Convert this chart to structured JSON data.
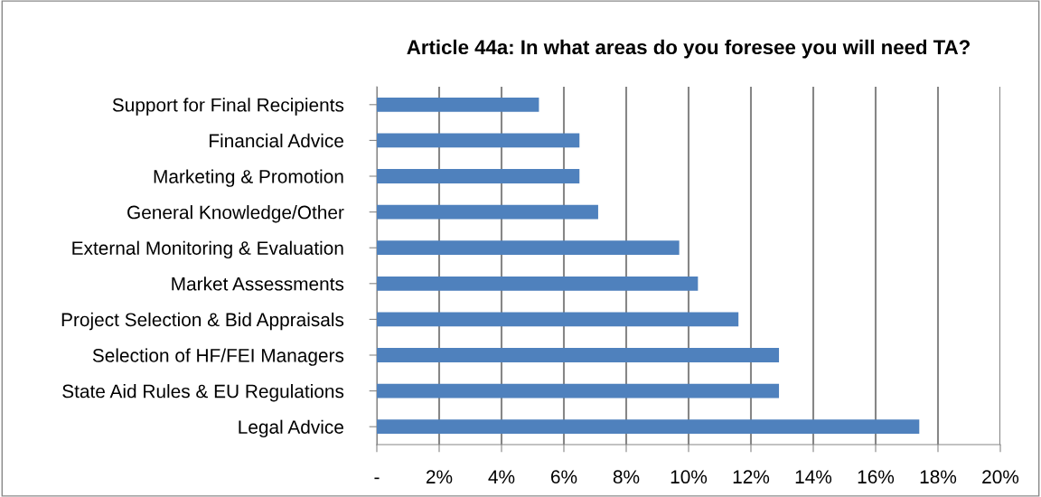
{
  "chart_data": {
    "type": "bar",
    "orientation": "horizontal",
    "title": "Article 44a: In what areas do you foresee you will need TA?",
    "categories": [
      "Support for Final Recipients",
      "Financial Advice",
      "Marketing & Promotion",
      "General Knowledge/Other",
      "External Monitoring & Evaluation",
      "Market Assessments",
      "Project Selection & Bid Appraisals",
      "Selection of HF/FEI Managers",
      "State Aid Rules & EU Regulations",
      "Legal Advice"
    ],
    "values": [
      5.2,
      6.5,
      6.5,
      7.1,
      9.7,
      10.3,
      11.6,
      12.9,
      12.9,
      17.4
    ],
    "color": "#4f81bd",
    "xlim": [
      0,
      20
    ],
    "xticks": [
      {
        "value": 0,
        "label": "-"
      },
      {
        "value": 2,
        "label": "2%"
      },
      {
        "value": 4,
        "label": "4%"
      },
      {
        "value": 6,
        "label": "6%"
      },
      {
        "value": 8,
        "label": "8%"
      },
      {
        "value": 10,
        "label": "10%"
      },
      {
        "value": 12,
        "label": "12%"
      },
      {
        "value": 14,
        "label": "14%"
      },
      {
        "value": 16,
        "label": "16%"
      },
      {
        "value": 18,
        "label": "18%"
      },
      {
        "value": 20,
        "label": "20%"
      }
    ],
    "grid": "x",
    "legend": false
  }
}
